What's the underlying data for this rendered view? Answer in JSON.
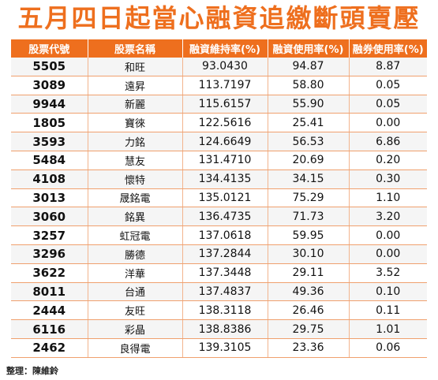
{
  "title": "五月四日起當心融資追繳斷頭賣壓",
  "columns": [
    "股票代號",
    "股票名稱",
    "融資維持率(%)",
    "融資使用率(%)",
    "融券使用率(%)"
  ],
  "rows": [
    [
      "5505",
      "和旺",
      "93.0430",
      "94.87",
      "8.87"
    ],
    [
      "3089",
      "遠昇",
      "113.7197",
      "58.80",
      "0.05"
    ],
    [
      "9944",
      "新麗",
      "115.6157",
      "55.90",
      "0.05"
    ],
    [
      "1805",
      "寶徠",
      "122.5616",
      "25.41",
      "0.00"
    ],
    [
      "3593",
      "力銘",
      "124.6649",
      "56.53",
      "6.86"
    ],
    [
      "5484",
      "慧友",
      "131.4710",
      "20.69",
      "0.20"
    ],
    [
      "4108",
      "懷特",
      "134.4135",
      "34.15",
      "0.30"
    ],
    [
      "3013",
      "晟銘電",
      "135.0121",
      "75.29",
      "1.10"
    ],
    [
      "3060",
      "銘異",
      "136.4735",
      "71.73",
      "3.20"
    ],
    [
      "3257",
      "虹冠電",
      "137.0618",
      "59.95",
      "0.00"
    ],
    [
      "3296",
      "勝德",
      "137.2844",
      "30.10",
      "0.00"
    ],
    [
      "3622",
      "洋華",
      "137.3448",
      "29.11",
      "3.52"
    ],
    [
      "8011",
      "台通",
      "137.4837",
      "49.36",
      "0.10"
    ],
    [
      "2444",
      "友旺",
      "138.3118",
      "26.46",
      "0.11"
    ],
    [
      "6116",
      "彩晶",
      "138.8386",
      "29.75",
      "1.01"
    ],
    [
      "2462",
      "良得電",
      "139.3105",
      "23.36",
      "0.06"
    ]
  ],
  "footer": "整理：陳維鈴",
  "colors": {
    "accent": "#ee6f1e",
    "row_alt": "#f5f5f5"
  }
}
